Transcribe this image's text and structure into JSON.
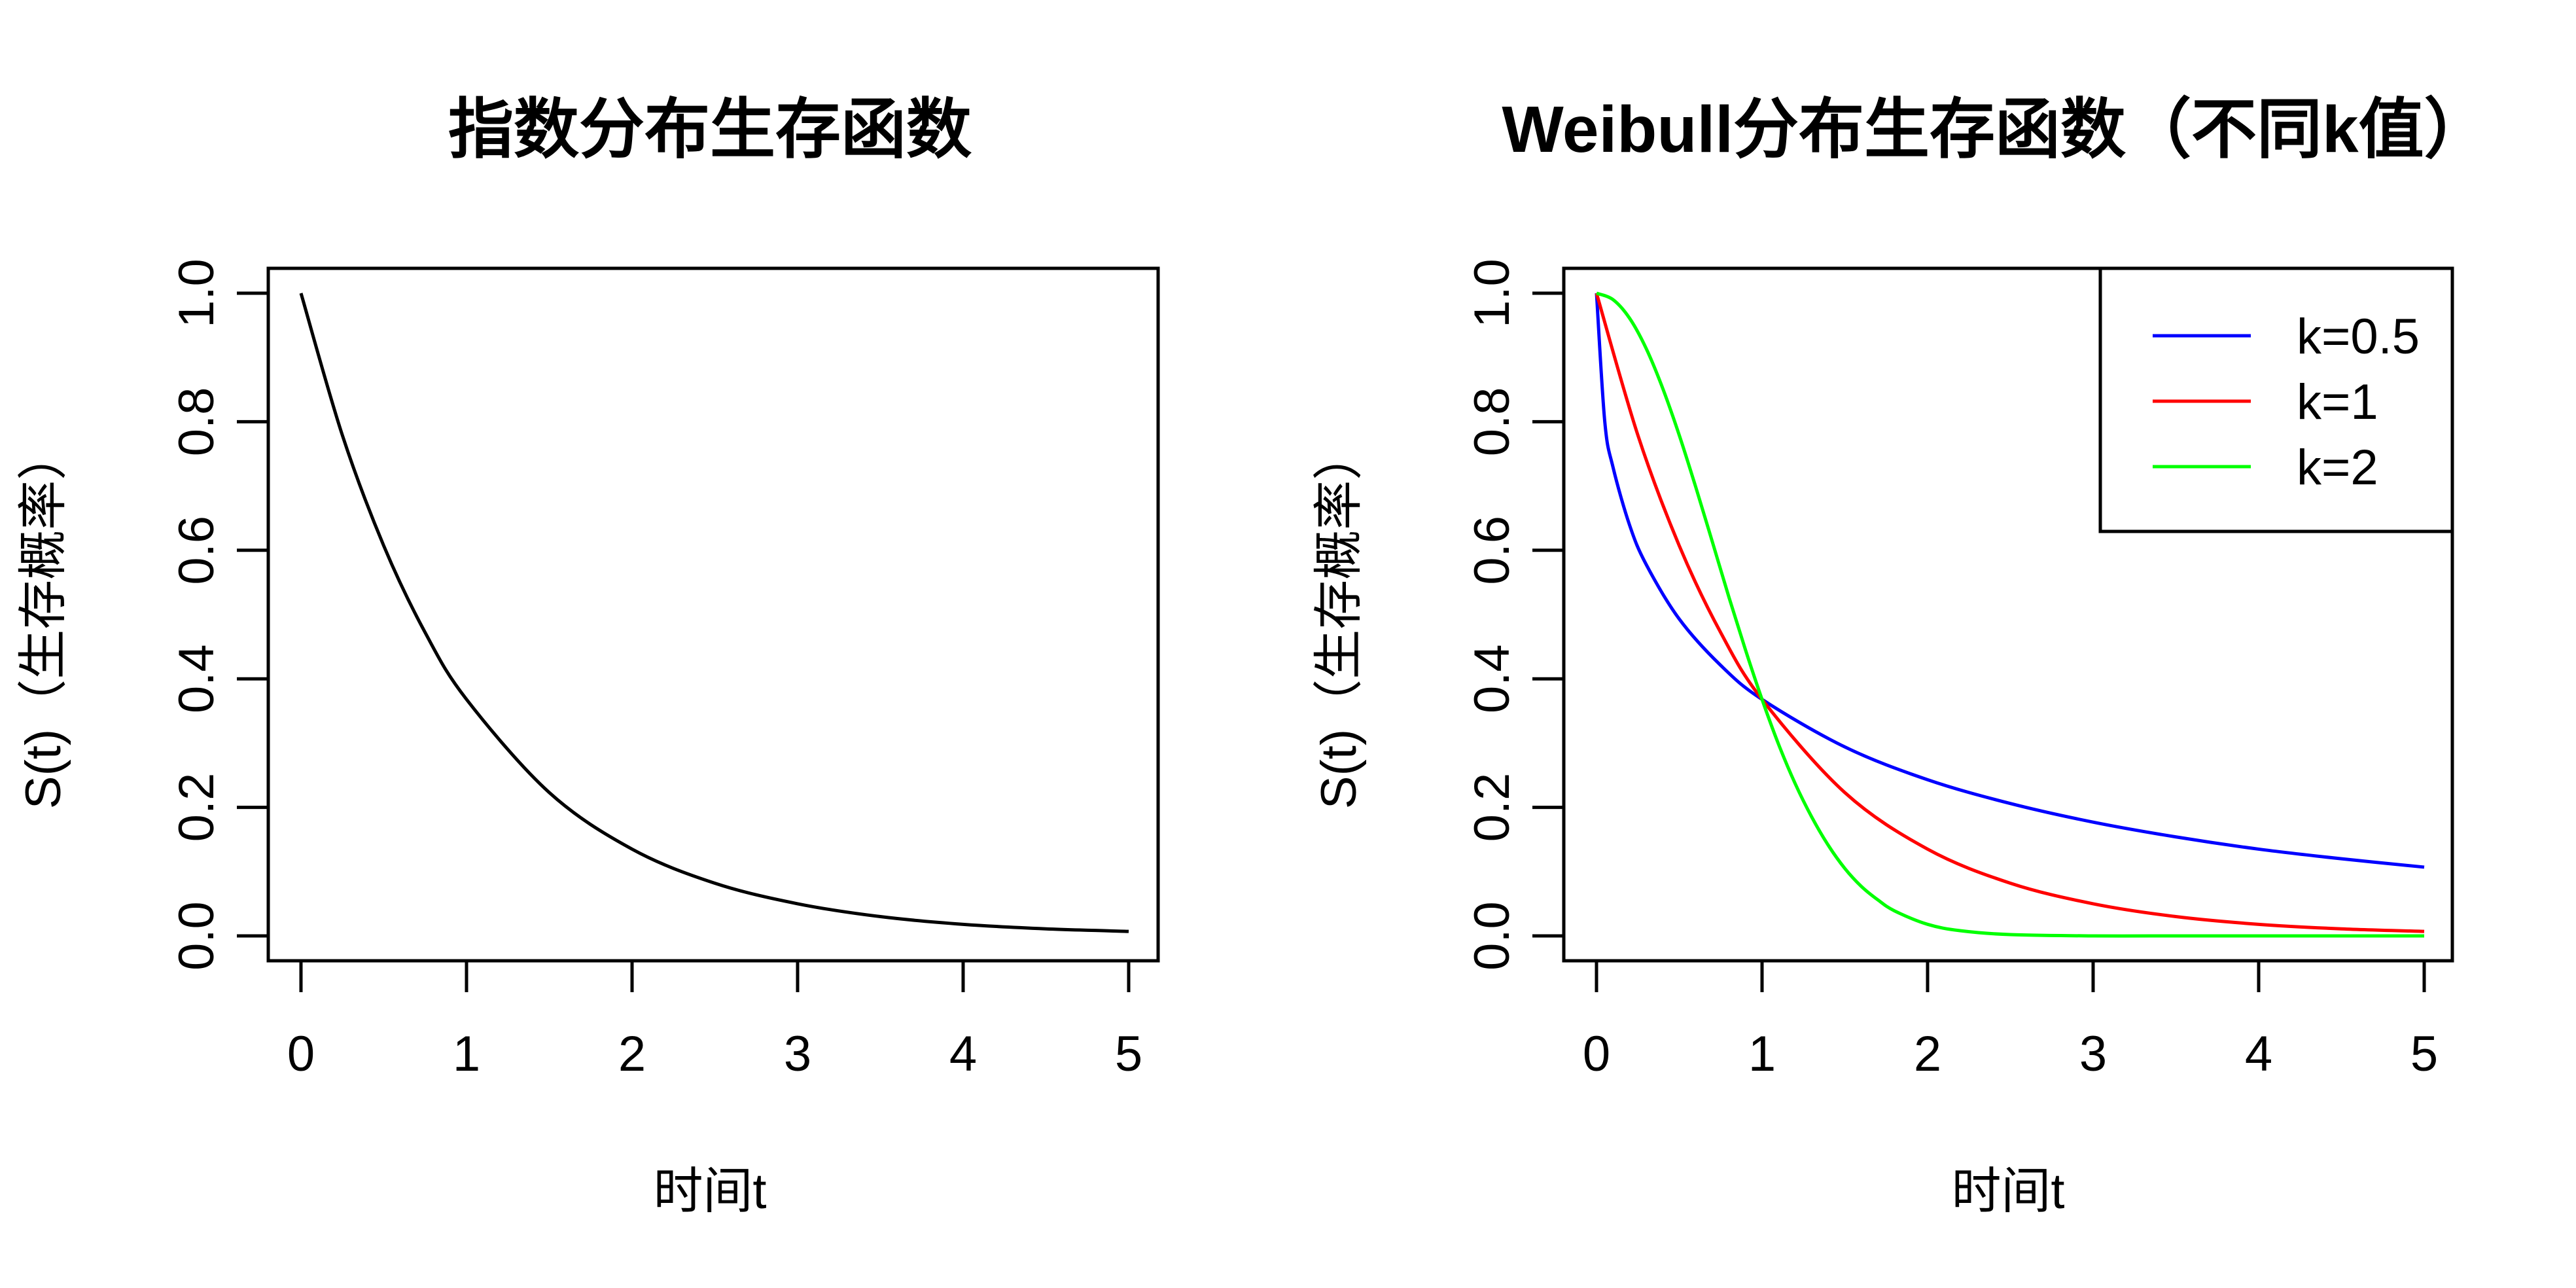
{
  "chart_data": [
    {
      "type": "line",
      "title": "指数分布生存函数",
      "xlabel": "时间t",
      "ylabel": "S(t)（生存概率）",
      "xlim": [
        0,
        5
      ],
      "ylim": [
        0,
        1
      ],
      "x_ticks": [
        "0",
        "1",
        "2",
        "3",
        "4",
        "5"
      ],
      "y_ticks": [
        "0.0",
        "0.2",
        "0.4",
        "0.6",
        "0.8",
        "1.0"
      ],
      "grid": false,
      "series": [
        {
          "color": "#000000",
          "x": [
            0,
            0.25,
            0.5,
            0.75,
            1,
            1.5,
            2,
            2.5,
            3,
            3.5,
            4,
            4.5,
            5
          ],
          "y": [
            1.0,
            0.779,
            0.607,
            0.472,
            0.368,
            0.223,
            0.135,
            0.082,
            0.05,
            0.03,
            0.018,
            0.011,
            0.007
          ]
        }
      ]
    },
    {
      "type": "line",
      "title": "Weibull分布生存函数（不同k值）",
      "xlabel": "时间t",
      "ylabel": "S(t)（生存概率）",
      "xlim": [
        0,
        5
      ],
      "ylim": [
        0,
        1
      ],
      "x_ticks": [
        "0",
        "1",
        "2",
        "3",
        "4",
        "5"
      ],
      "y_ticks": [
        "0.0",
        "0.2",
        "0.4",
        "0.6",
        "0.8",
        "1.0"
      ],
      "grid": false,
      "legend": {
        "position": "top-right"
      },
      "series": [
        {
          "name": "k=0.5",
          "color": "#0000FF",
          "x": [
            0,
            0.05,
            0.1,
            0.2,
            0.3,
            0.5,
            0.75,
            1,
            1.5,
            2,
            2.5,
            3,
            3.5,
            4,
            4.5,
            5
          ],
          "y": [
            1.0,
            0.8,
            0.729,
            0.639,
            0.578,
            0.493,
            0.421,
            0.368,
            0.294,
            0.243,
            0.206,
            0.177,
            0.154,
            0.135,
            0.12,
            0.107
          ]
        },
        {
          "name": "k=1",
          "color": "#FF0000",
          "x": [
            0,
            0.25,
            0.5,
            0.75,
            1,
            1.5,
            2,
            2.5,
            3,
            3.5,
            4,
            4.5,
            5
          ],
          "y": [
            1.0,
            0.779,
            0.607,
            0.472,
            0.368,
            0.223,
            0.135,
            0.082,
            0.05,
            0.03,
            0.018,
            0.011,
            0.007
          ]
        },
        {
          "name": "k=2",
          "color": "#00FF00",
          "x": [
            0,
            0.1,
            0.2,
            0.3,
            0.4,
            0.5,
            0.6,
            0.7,
            0.8,
            0.9,
            1,
            1.1,
            1.2,
            1.3,
            1.4,
            1.5,
            1.6,
            1.7,
            1.8,
            2,
            2.2,
            2.5,
            3,
            3.5,
            4,
            4.5,
            5
          ],
          "y": [
            1.0,
            0.99,
            0.961,
            0.914,
            0.852,
            0.779,
            0.698,
            0.613,
            0.527,
            0.445,
            0.368,
            0.298,
            0.237,
            0.185,
            0.141,
            0.105,
            0.077,
            0.056,
            0.039,
            0.018,
            0.008,
            0.002,
            0.0,
            0.0,
            0.0,
            0.0,
            0.0
          ]
        }
      ]
    }
  ]
}
